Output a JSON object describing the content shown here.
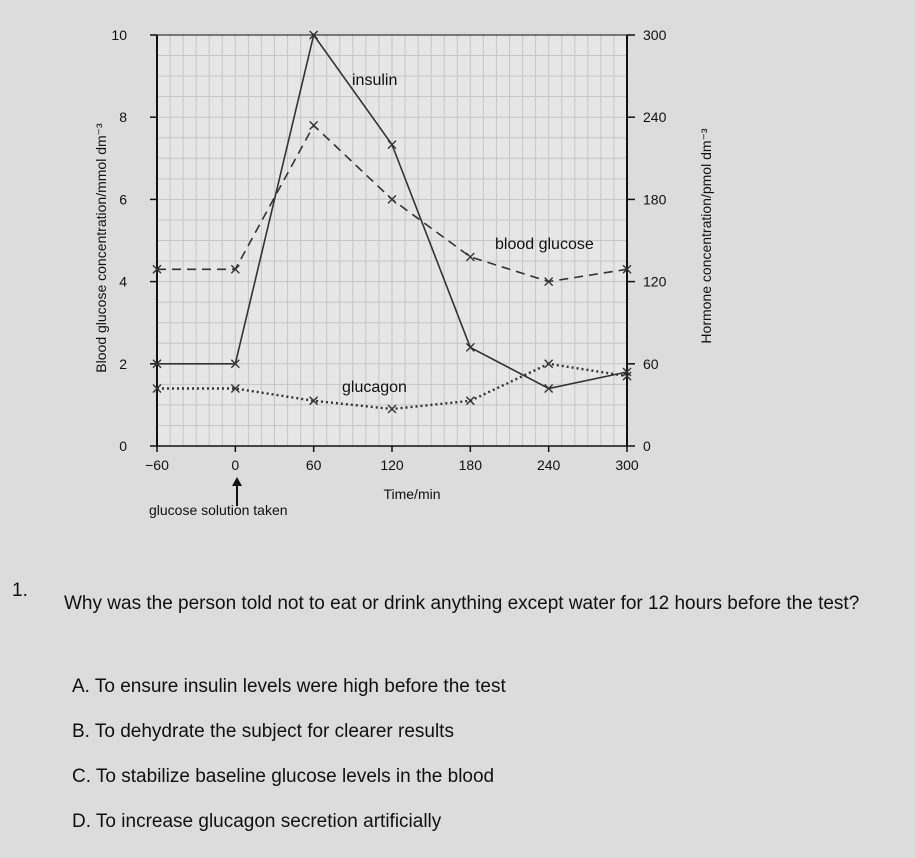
{
  "chart_data": {
    "type": "line",
    "xlabel": "Time/min",
    "ylabel_left": "Blood glucose concentration/mmol dm⁻³",
    "ylabel_right": "Hormone concentration/pmol dm⁻³",
    "x_ticks": [
      "−60",
      "0",
      "60",
      "120",
      "180",
      "240",
      "300"
    ],
    "y_left_ticks": [
      "0",
      "2",
      "4",
      "6",
      "8",
      "10"
    ],
    "y_right_ticks": [
      "0",
      "60",
      "120",
      "180",
      "240",
      "300"
    ],
    "xlim": [
      -60,
      300
    ],
    "ylim_left": [
      0,
      10
    ],
    "ylim_right": [
      0,
      300
    ],
    "grid": true,
    "annotation": "glucose solution taken",
    "series": [
      {
        "name": "insulin",
        "axis": "right",
        "style": "solid",
        "x": [
          -60,
          0,
          60,
          120,
          180,
          240,
          300
        ],
        "y": [
          60,
          60,
          300,
          220,
          72,
          42,
          54
        ]
      },
      {
        "name": "blood glucose",
        "axis": "left",
        "style": "dashed",
        "x": [
          -60,
          0,
          60,
          120,
          180,
          240,
          300
        ],
        "y": [
          4.3,
          4.3,
          7.8,
          6.0,
          4.6,
          4.0,
          4.3
        ]
      },
      {
        "name": "glucagon",
        "axis": "right",
        "style": "dotted",
        "x": [
          -60,
          0,
          60,
          120,
          180,
          240,
          300
        ],
        "y": [
          42,
          42,
          33,
          27,
          33,
          60,
          51
        ]
      }
    ]
  },
  "question": {
    "number": "1.",
    "text": "Why was the person told not to eat or drink anything except water for 12 hours before the test?",
    "options": [
      "A. To ensure insulin levels were high before the test",
      "B. To dehydrate the subject for clearer results",
      "C. To stabilize baseline glucose levels in the blood",
      "D. To increase glucagon secretion artificially"
    ]
  }
}
